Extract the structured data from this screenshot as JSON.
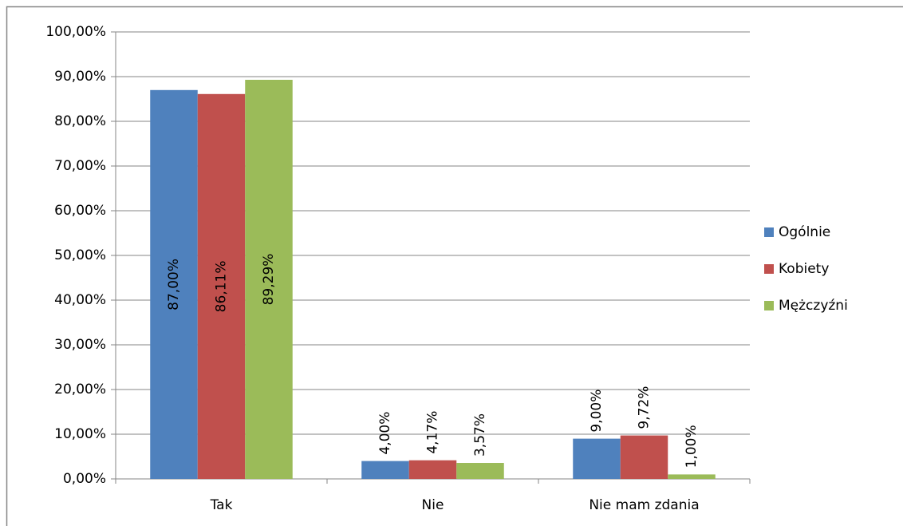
{
  "chart_data": {
    "type": "bar",
    "categories": [
      "Tak",
      "Nie",
      "Nie mam zdania"
    ],
    "series": [
      {
        "name": "Ogólnie",
        "color": "#4f81bd",
        "values": [
          87,
          4,
          9
        ],
        "value_labels": [
          "87,00%",
          "4,00%",
          "9,00%"
        ]
      },
      {
        "name": "Kobiety",
        "color": "#c0504d",
        "values": [
          86.11,
          4.17,
          9.72
        ],
        "value_labels": [
          "86,11%",
          "4,17%",
          "9,72%"
        ]
      },
      {
        "name": "Mężczyźni",
        "color": "#9bbb59",
        "values": [
          89.29,
          3.57,
          1
        ],
        "value_labels": [
          "89,29%",
          "3,57%",
          "1,00%"
        ]
      }
    ],
    "ylim": [
      0,
      100
    ],
    "yticks": [
      {
        "value": 0,
        "label": "0,00%"
      },
      {
        "value": 10,
        "label": "10,00%"
      },
      {
        "value": 20,
        "label": "20,00%"
      },
      {
        "value": 30,
        "label": "30,00%"
      },
      {
        "value": 40,
        "label": "40,00%"
      },
      {
        "value": 50,
        "label": "50,00%"
      },
      {
        "value": 60,
        "label": "60,00%"
      },
      {
        "value": 70,
        "label": "70,00%"
      },
      {
        "value": 80,
        "label": "80,00%"
      },
      {
        "value": 90,
        "label": "90,00%"
      },
      {
        "value": 100,
        "label": "100,00%"
      }
    ],
    "grid": true,
    "legend": "right"
  }
}
